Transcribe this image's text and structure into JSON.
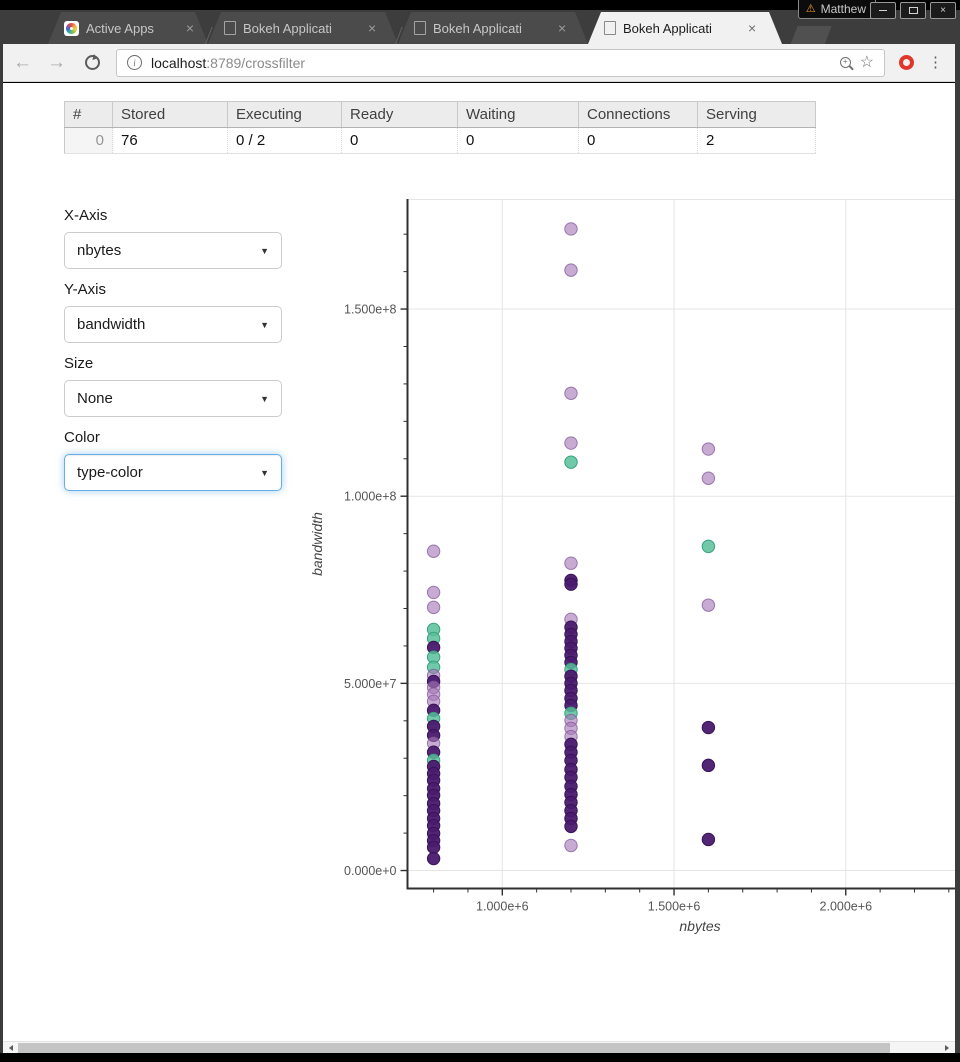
{
  "window": {
    "profile_name": "Matthew",
    "minimize_glyph": "–",
    "close_glyph": "×"
  },
  "tabs": [
    {
      "label": "Active Apps",
      "favicon": "bokeh-pinwheel-icon",
      "close": "×",
      "active": false
    },
    {
      "label": "Bokeh Applicati",
      "favicon": "page-icon",
      "close": "×",
      "active": false
    },
    {
      "label": "Bokeh Applicati",
      "favicon": "page-icon",
      "close": "×",
      "active": false
    },
    {
      "label": "Bokeh Applicati",
      "favicon": "page-icon",
      "close": "×",
      "active": true
    }
  ],
  "toolbar": {
    "back_glyph": "←",
    "forward_glyph": "→",
    "url_host": "localhost",
    "url_rest": ":8789/crossfilter",
    "star_glyph": "☆",
    "menu_glyph": "⋮"
  },
  "status_table": {
    "columns": [
      "#",
      "Stored",
      "Executing",
      "Ready",
      "Waiting",
      "Connections",
      "Serving"
    ],
    "rows": [
      [
        "0",
        "76",
        "0 / 2",
        "0",
        "0",
        "0",
        "2"
      ]
    ]
  },
  "controls": [
    {
      "label": "X-Axis",
      "value": "nbytes",
      "focused": false
    },
    {
      "label": "Y-Axis",
      "value": "bandwidth",
      "focused": false
    },
    {
      "label": "Size",
      "value": "None",
      "focused": false
    },
    {
      "label": "Color",
      "value": "type-color",
      "focused": true
    }
  ],
  "accent_focus": "#66afe9",
  "chart_data": {
    "type": "scatter",
    "xlabel": "nbytes",
    "ylabel": "bandwidth",
    "unit": 1000000,
    "x_range": [
      0.724,
      2.318
    ],
    "y_range": [
      -4.8,
      179.4
    ],
    "x_ticks": [
      {
        "v": 1.0,
        "label": "1.000e+6"
      },
      {
        "v": 1.5,
        "label": "1.500e+6"
      },
      {
        "v": 2.0,
        "label": "2.000e+6"
      }
    ],
    "y_ticks": [
      {
        "v": 0,
        "label": "0.000e+0"
      },
      {
        "v": 50,
        "label": "5.000e+7"
      },
      {
        "v": 100,
        "label": "1.000e+8"
      },
      {
        "v": 150,
        "label": "1.500e+8"
      }
    ],
    "x_minor": {
      "from": 0.8,
      "to": 2.3,
      "step": 0.1
    },
    "y_minor": {
      "from": 10,
      "to": 170,
      "step": 10
    },
    "grid": true,
    "legend": "none",
    "colors": {
      "d": {
        "fill": "#4a1a6e",
        "stroke": "#371357",
        "opacity": 0.95
      },
      "l": {
        "fill": "#a678b8",
        "stroke": "#825a99",
        "opacity": 0.62
      },
      "g": {
        "fill": "#57c09a",
        "stroke": "#3aa07e",
        "opacity": 0.85
      }
    },
    "points": [
      [
        0.8,
        85.3,
        "l"
      ],
      [
        0.8,
        74.3,
        "l"
      ],
      [
        0.8,
        70.3,
        "l"
      ],
      [
        0.8,
        64.4,
        "g"
      ],
      [
        0.8,
        62.0,
        "g"
      ],
      [
        0.8,
        59.6,
        "d"
      ],
      [
        0.8,
        57.0,
        "g"
      ],
      [
        0.8,
        54.3,
        "g"
      ],
      [
        0.8,
        52.1,
        "l"
      ],
      [
        0.8,
        50.5,
        "d"
      ],
      [
        0.8,
        48.9,
        "l"
      ],
      [
        0.8,
        47.1,
        "l"
      ],
      [
        0.8,
        45.2,
        "l"
      ],
      [
        0.8,
        42.8,
        "d"
      ],
      [
        0.8,
        40.6,
        "g"
      ],
      [
        0.8,
        38.5,
        "d"
      ],
      [
        0.8,
        36.1,
        "d"
      ],
      [
        0.8,
        34.0,
        "l"
      ],
      [
        0.8,
        31.6,
        "d"
      ],
      [
        0.8,
        29.4,
        "g"
      ],
      [
        0.8,
        27.8,
        "d"
      ],
      [
        0.8,
        25.9,
        "d"
      ],
      [
        0.8,
        24.1,
        "d"
      ],
      [
        0.8,
        21.9,
        "d"
      ],
      [
        0.8,
        20.1,
        "d"
      ],
      [
        0.8,
        17.9,
        "d"
      ],
      [
        0.8,
        16.0,
        "d"
      ],
      [
        0.8,
        13.9,
        "d"
      ],
      [
        0.8,
        12.0,
        "d"
      ],
      [
        0.8,
        9.9,
        "d"
      ],
      [
        0.8,
        8.0,
        "d"
      ],
      [
        0.8,
        6.2,
        "d"
      ],
      [
        0.8,
        3.2,
        "d"
      ],
      [
        1.2,
        171.4,
        "l"
      ],
      [
        1.2,
        160.4,
        "l"
      ],
      [
        1.2,
        127.5,
        "l"
      ],
      [
        1.2,
        114.2,
        "l"
      ],
      [
        1.2,
        109.1,
        "g"
      ],
      [
        1.2,
        82.1,
        "l"
      ],
      [
        1.2,
        77.5,
        "d"
      ],
      [
        1.2,
        76.5,
        "d"
      ],
      [
        1.2,
        67.1,
        "l"
      ],
      [
        1.2,
        65.0,
        "d"
      ],
      [
        1.2,
        63.1,
        "d"
      ],
      [
        1.2,
        61.2,
        "d"
      ],
      [
        1.2,
        59.4,
        "d"
      ],
      [
        1.2,
        57.5,
        "d"
      ],
      [
        1.2,
        55.6,
        "d"
      ],
      [
        1.2,
        53.7,
        "g"
      ],
      [
        1.2,
        51.9,
        "d"
      ],
      [
        1.2,
        50.0,
        "d"
      ],
      [
        1.2,
        48.1,
        "d"
      ],
      [
        1.2,
        46.0,
        "d"
      ],
      [
        1.2,
        44.1,
        "d"
      ],
      [
        1.2,
        42.0,
        "g"
      ],
      [
        1.2,
        40.1,
        "l"
      ],
      [
        1.2,
        38.0,
        "l"
      ],
      [
        1.2,
        35.8,
        "l"
      ],
      [
        1.2,
        33.7,
        "d"
      ],
      [
        1.2,
        31.6,
        "d"
      ],
      [
        1.2,
        29.4,
        "d"
      ],
      [
        1.2,
        27.0,
        "d"
      ],
      [
        1.2,
        24.9,
        "d"
      ],
      [
        1.2,
        22.5,
        "d"
      ],
      [
        1.2,
        20.3,
        "d"
      ],
      [
        1.2,
        18.2,
        "d"
      ],
      [
        1.2,
        16.0,
        "d"
      ],
      [
        1.2,
        13.9,
        "d"
      ],
      [
        1.2,
        11.8,
        "d"
      ],
      [
        1.2,
        6.7,
        "l"
      ],
      [
        1.6,
        112.6,
        "l"
      ],
      [
        1.6,
        104.8,
        "l"
      ],
      [
        1.6,
        86.6,
        "g"
      ],
      [
        1.6,
        70.9,
        "l"
      ],
      [
        1.6,
        38.2,
        "d"
      ],
      [
        1.6,
        28.1,
        "d"
      ],
      [
        1.6,
        8.3,
        "d"
      ]
    ]
  }
}
